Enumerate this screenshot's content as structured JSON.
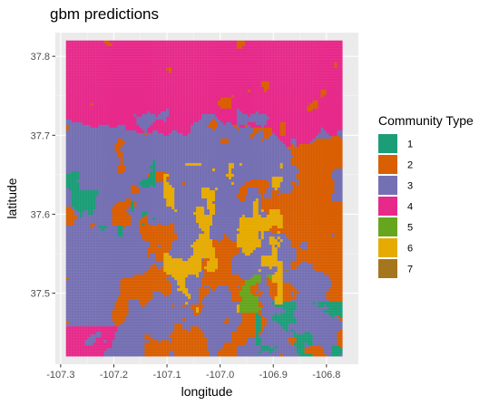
{
  "chart_data": {
    "type": "heatmap",
    "title": "gbm predictions",
    "xlabel": "longitude",
    "ylabel": "latitude",
    "xlim": [
      -107.31,
      -106.74
    ],
    "ylim": [
      37.41,
      37.83
    ],
    "data_extent": {
      "x": [
        -107.29,
        -106.77
      ],
      "y": [
        37.42,
        37.82
      ]
    },
    "x_ticks": [
      -107.3,
      -107.2,
      -107.1,
      -107.0,
      -106.9,
      -106.8
    ],
    "x_tick_labels": [
      "-107.3",
      "-107.2",
      "-107.1",
      "-107.0",
      "-106.9",
      "-106.8"
    ],
    "y_ticks": [
      37.5,
      37.6,
      37.7,
      37.8
    ],
    "y_tick_labels": [
      "37.5",
      "37.6",
      "37.7",
      "37.8"
    ],
    "grid": true,
    "panel_background": "#ebebeb",
    "legend": {
      "title": "Community Type",
      "position": "right",
      "entries": [
        {
          "label": "1",
          "color": "#1b9e77"
        },
        {
          "label": "2",
          "color": "#d95f02"
        },
        {
          "label": "3",
          "color": "#7570b3"
        },
        {
          "label": "4",
          "color": "#e7298a"
        },
        {
          "label": "5",
          "color": "#66a61e"
        },
        {
          "label": "6",
          "color": "#e6ab02"
        },
        {
          "label": "7",
          "color": "#a6761d"
        }
      ]
    },
    "regions": [
      {
        "community": "4",
        "area": "northern band, latitude 37.74 to 37.82"
      },
      {
        "community": "3",
        "area": "background across central and southern extent"
      },
      {
        "community": "2",
        "area": "eastern half and scattered patches"
      },
      {
        "community": "1",
        "area": "western patches near 37.62 to 37.70 and south-east near 37.46"
      },
      {
        "community": "6",
        "area": "central scatter around -107.05 to -106.90, 37.48 to 37.65"
      },
      {
        "community": "5",
        "area": "small patch near -106.93, 37.48"
      },
      {
        "community": "7",
        "area": "rare, few scattered cells"
      }
    ]
  }
}
